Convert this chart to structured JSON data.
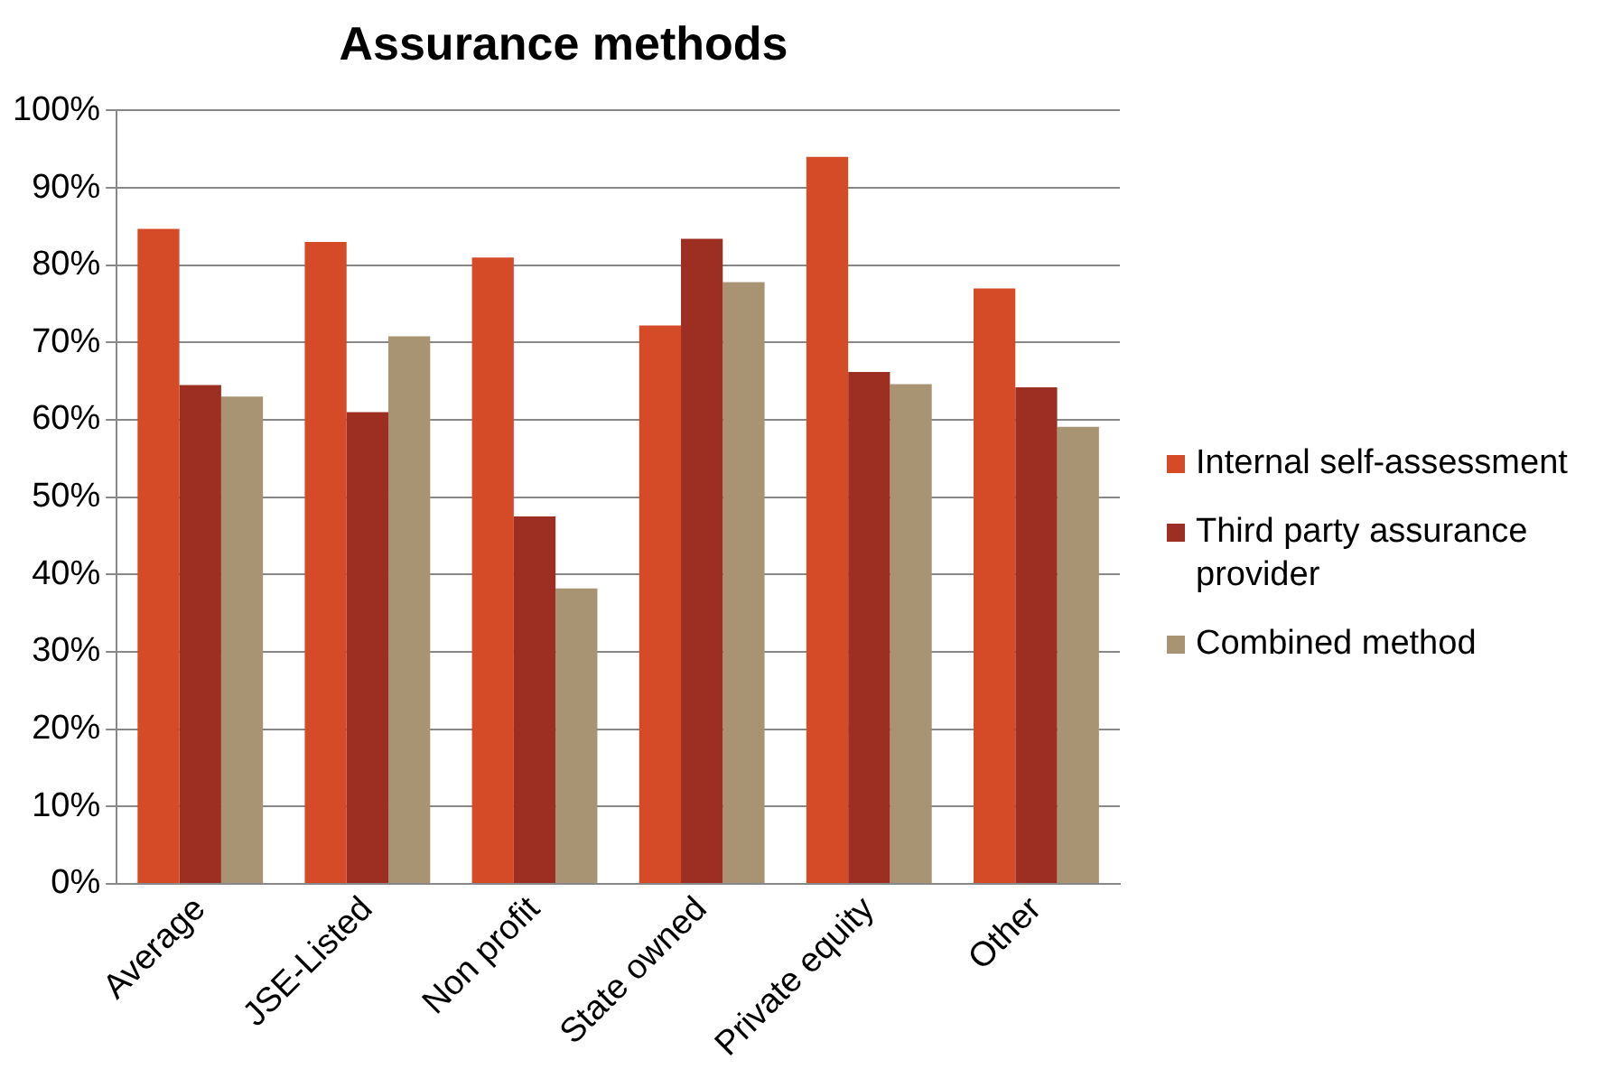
{
  "chart_data": {
    "type": "bar",
    "title": "Assurance methods",
    "categories": [
      "Average",
      "JSE-Listed",
      "Non profit",
      "State owned",
      "Private equity",
      "Other"
    ],
    "series": [
      {
        "name": "Internal self-assessment",
        "color": "#d54b27",
        "values": [
          84.7,
          83,
          81,
          72.2,
          94,
          77
        ]
      },
      {
        "name": "Third party assurance provider",
        "color": "#9c2f22",
        "values": [
          64.5,
          61,
          47.5,
          83.4,
          66.2,
          64.2
        ]
      },
      {
        "name": "Combined method",
        "color": "#a89472",
        "values": [
          63,
          70.8,
          38.2,
          77.8,
          64.6,
          59.1
        ]
      }
    ],
    "ylim": [
      0,
      100
    ],
    "yticks": [
      {
        "value": 0,
        "label": "0%"
      },
      {
        "value": 10,
        "label": "10%"
      },
      {
        "value": 20,
        "label": "20%"
      },
      {
        "value": 30,
        "label": "30%"
      },
      {
        "value": 40,
        "label": "40%"
      },
      {
        "value": 50,
        "label": "50%"
      },
      {
        "value": 60,
        "label": "60%"
      },
      {
        "value": 70,
        "label": "70%"
      },
      {
        "value": 80,
        "label": "80%"
      },
      {
        "value": 90,
        "label": "90%"
      },
      {
        "value": 100,
        "label": "100%"
      }
    ],
    "grid": "y",
    "legend": "right"
  }
}
